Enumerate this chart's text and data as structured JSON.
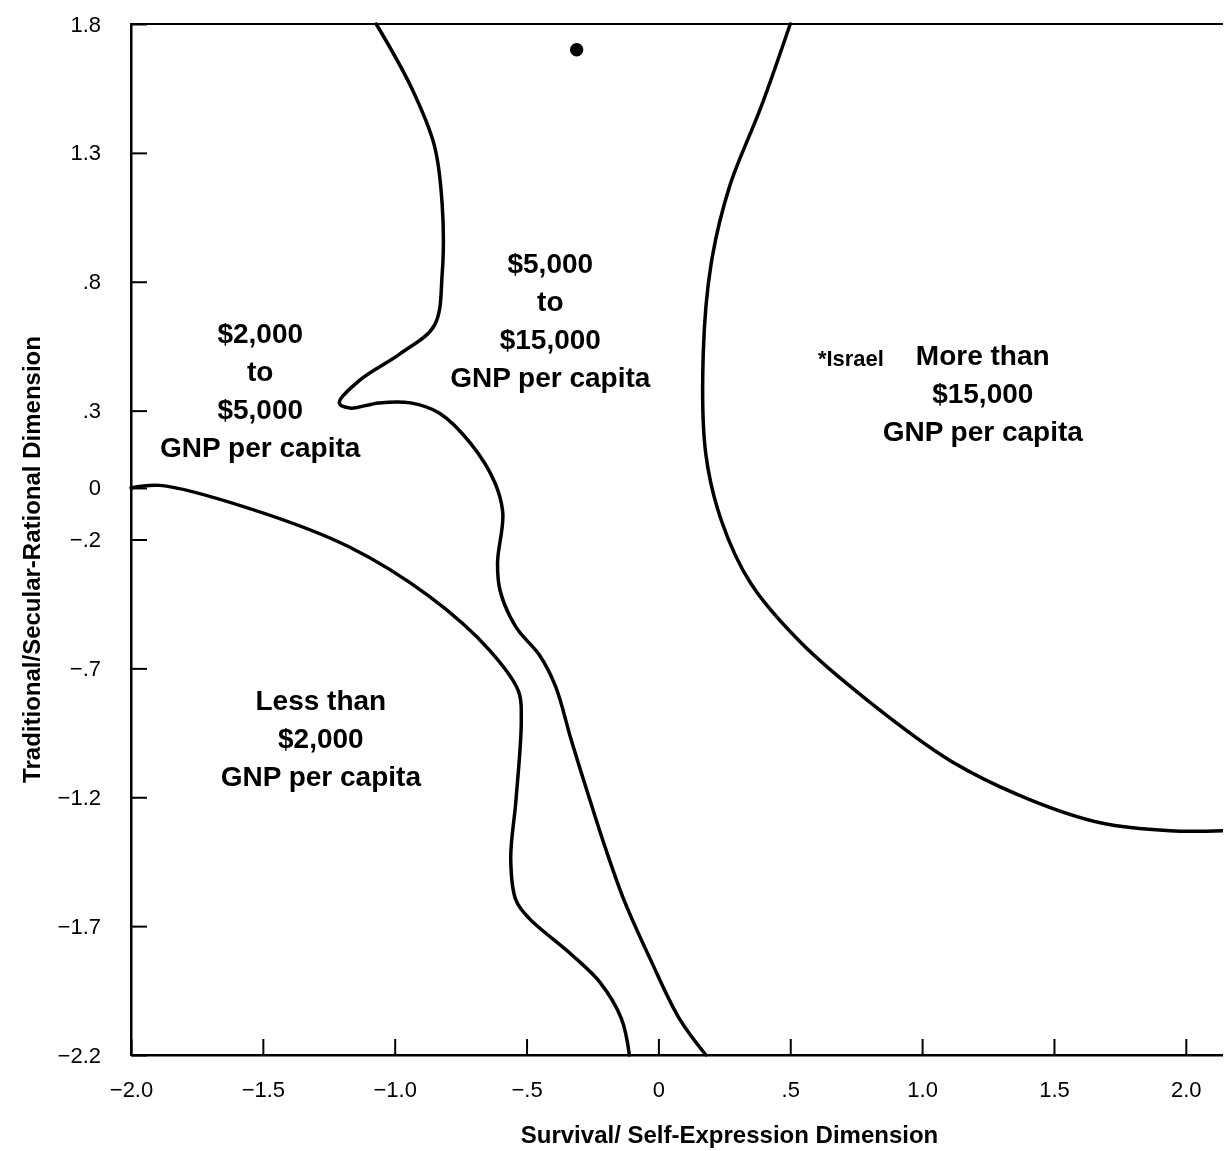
{
  "chart_data": {
    "type": "line",
    "xlabel": "Survival/ Self-Expression Dimension",
    "ylabel": "Traditional/Secular-Rational Dimension",
    "xlim": [
      -2.0,
      2.16
    ],
    "ylim": [
      -2.2,
      1.8
    ],
    "xticks": [
      {
        "value": -2.0,
        "label": "−2.0"
      },
      {
        "value": -1.5,
        "label": "−1.5"
      },
      {
        "value": -1.0,
        "label": "−1.0"
      },
      {
        "value": -0.5,
        "label": "−.5"
      },
      0,
      {
        "value": 0.5,
        "label": ".5"
      },
      {
        "value": 1.0,
        "label": "1.0"
      },
      1.5,
      {
        "value": 2.0,
        "label": "2.0"
      }
    ],
    "yticks": [
      1.8,
      1.3,
      {
        "value": 0.8,
        "label": ".8"
      },
      {
        "value": 0.3,
        "label": ".3"
      },
      0,
      {
        "value": -0.2,
        "label": "−.2"
      },
      {
        "value": -0.7,
        "label": "−.7"
      },
      {
        "value": -1.2,
        "label": "−1.2"
      },
      {
        "value": -1.7,
        "label": "−1.7"
      },
      {
        "value": -2.2,
        "label": "−2.2"
      }
    ],
    "grid": false,
    "marker": "none",
    "line_style": "solid",
    "series": [
      {
        "color": "#000000",
        "x": [
          -2.0,
          -1.89,
          -1.55,
          -1.17,
          -0.87,
          -0.64,
          -0.53,
          -0.52,
          -0.54,
          -0.56,
          -0.54,
          -0.49,
          -0.33,
          -0.22,
          -0.14,
          -0.11
        ],
        "values": [
          0.0,
          0.01,
          -0.08,
          -0.23,
          -0.42,
          -0.63,
          -0.79,
          -0.9,
          -1.21,
          -1.44,
          -1.6,
          -1.67,
          -1.81,
          -1.92,
          -2.06,
          -2.2
        ]
      },
      {
        "color": "#000000",
        "x": [
          -1.07,
          -0.94,
          -0.85,
          -0.82,
          -0.82,
          -0.85,
          -0.98,
          -1.13,
          -1.21,
          -1.17,
          -1.06,
          -0.94,
          -0.83,
          -0.71,
          -0.62,
          -0.59,
          -0.61,
          -0.6,
          -0.54,
          -0.45,
          -0.39,
          -0.33,
          -0.26,
          -0.2,
          -0.13,
          -0.03,
          0.08,
          0.18
        ],
        "values": [
          1.8,
          1.56,
          1.33,
          1.1,
          0.83,
          0.63,
          0.52,
          0.42,
          0.33,
          0.31,
          0.33,
          0.33,
          0.29,
          0.17,
          0.02,
          -0.1,
          -0.29,
          -0.4,
          -0.54,
          -0.65,
          -0.77,
          -0.98,
          -1.21,
          -1.4,
          -1.6,
          -1.83,
          -2.06,
          -2.2
        ]
      },
      {
        "color": "#000000",
        "x": [
          0.5,
          0.39,
          0.27,
          0.2,
          0.17,
          0.18,
          0.24,
          0.35,
          0.54,
          0.8,
          1.11,
          1.41,
          1.68,
          1.94,
          2.14
        ],
        "values": [
          1.8,
          1.48,
          1.17,
          0.87,
          0.52,
          0.13,
          -0.13,
          -0.37,
          -0.6,
          -0.83,
          -1.06,
          -1.21,
          -1.3,
          -1.33,
          -1.33
        ]
      },
      {
        "type": "scatter",
        "color": "#000000",
        "marker": "circle",
        "x": [
          -0.31
        ],
        "values": [
          1.7
        ]
      }
    ],
    "annotations": [
      "$2,000\nto\n$5,000\nGNP per capita",
      "$5,000\nto\n$15,000\nGNP per capita",
      "More than\n$15,000\nGNP per capita",
      "Less than\n$2,000\nGNP per capita",
      "*Israel"
    ]
  }
}
